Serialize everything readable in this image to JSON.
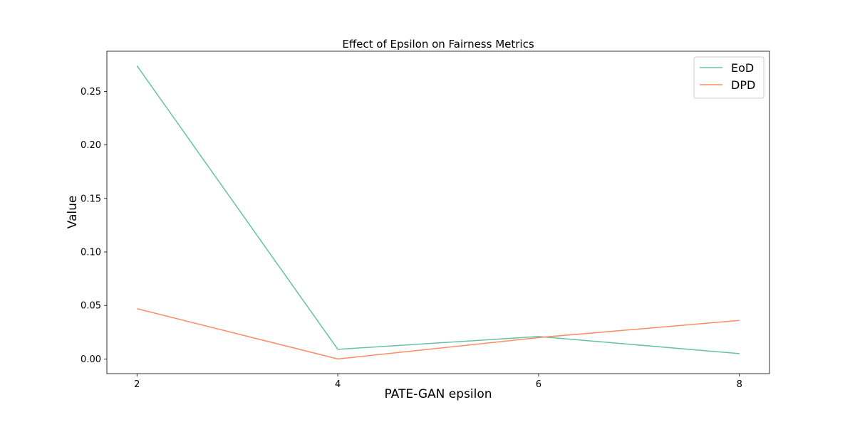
{
  "chart_data": {
    "type": "line",
    "title": "Effect of Epsilon on Fairness Metrics",
    "xlabel": "PATE-GAN epsilon",
    "ylabel": "Value",
    "x": [
      2,
      4,
      6,
      8
    ],
    "xticks": [
      2,
      4,
      6,
      8
    ],
    "xtick_labels": [
      "2",
      "4",
      "6",
      "8"
    ],
    "yticks": [
      0.0,
      0.05,
      0.1,
      0.15,
      0.2,
      0.25
    ],
    "ytick_labels": [
      "0.00",
      "0.05",
      "0.10",
      "0.15",
      "0.20",
      "0.25"
    ],
    "xlim": [
      1.7,
      8.3
    ],
    "ylim": [
      -0.0137,
      0.2876
    ],
    "grid": false,
    "legend_position": "top-right",
    "series": [
      {
        "name": "EoD",
        "color": "#66c2a5",
        "values": [
          0.274,
          0.009,
          0.021,
          0.005
        ]
      },
      {
        "name": "DPD",
        "color": "#fc8d62",
        "values": [
          0.047,
          0.0,
          0.02,
          0.036
        ]
      }
    ]
  }
}
